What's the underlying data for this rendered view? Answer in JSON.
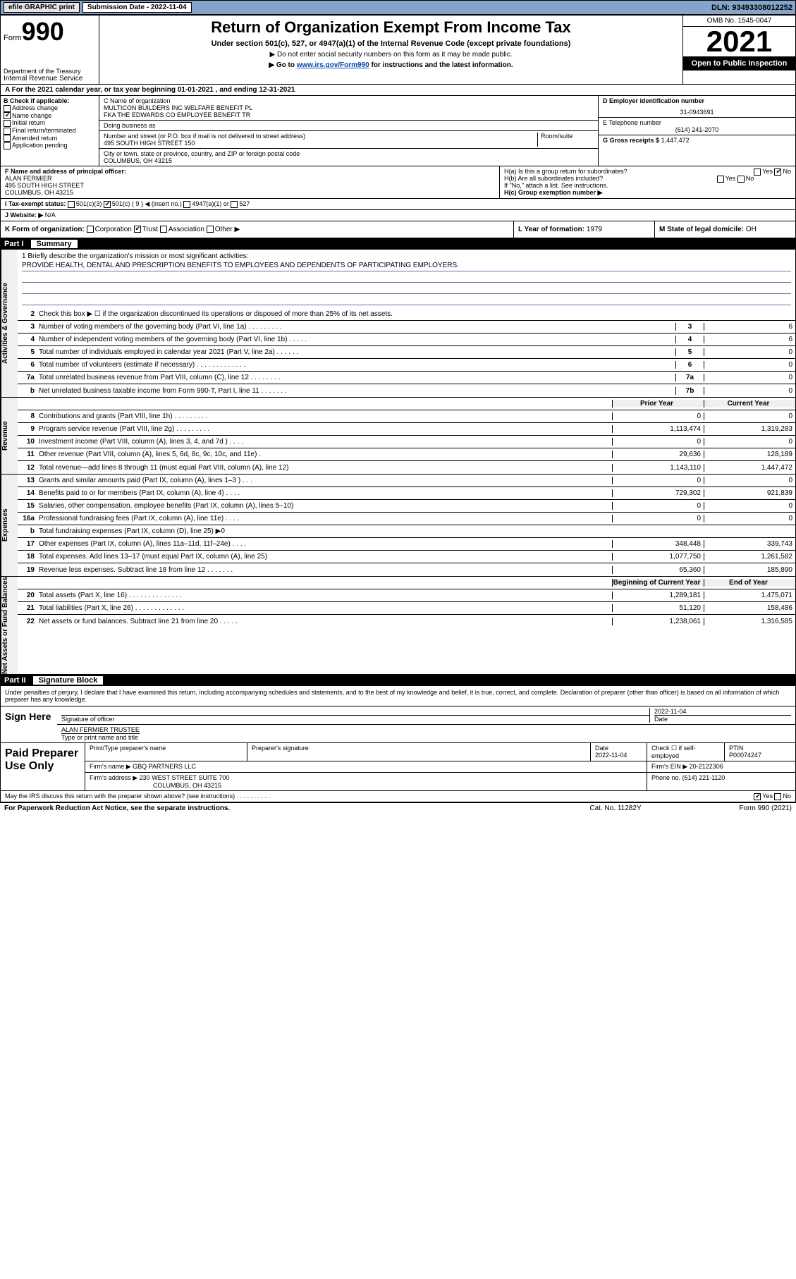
{
  "topbar": {
    "efile": "efile GRAPHIC print",
    "sub_label": "Submission Date - 2022-11-04",
    "dln": "DLN: 93493308012252"
  },
  "header": {
    "form_prefix": "Form",
    "form_no": "990",
    "dept": "Department of the Treasury",
    "irs": "Internal Revenue Service",
    "title": "Return of Organization Exempt From Income Tax",
    "sub": "Under section 501(c), 527, or 4947(a)(1) of the Internal Revenue Code (except private foundations)",
    "note1": "▶ Do not enter social security numbers on this form as it may be made public.",
    "note2_pre": "▶ Go to ",
    "note2_link": "www.irs.gov/Form990",
    "note2_post": " for instructions and the latest information.",
    "omb": "OMB No. 1545-0047",
    "year": "2021",
    "inspect": "Open to Public Inspection"
  },
  "row_a": "A For the 2021 calendar year, or tax year beginning 01-01-2021  , and ending 12-31-2021",
  "col_b": {
    "label": "B Check if applicable:",
    "addr": "Address change",
    "name": "Name change",
    "init": "Initial return",
    "final": "Final return/terminated",
    "amend": "Amended return",
    "app": "Application pending"
  },
  "col_c": {
    "name_lbl": "C Name of organization",
    "name1": "MULTICON BUILDERS INC WELFARE BENEFIT PL",
    "name2": "FKA THE EDWARDS CO EMPLOYEE BENEFIT TR",
    "dba_lbl": "Doing business as",
    "street_lbl": "Number and street (or P.O. box if mail is not delivered to street address)",
    "room_lbl": "Room/suite",
    "street": "495 SOUTH HIGH STREET 150",
    "city_lbl": "City or town, state or province, country, and ZIP or foreign postal code",
    "city": "COLUMBUS, OH  43215"
  },
  "col_d": {
    "ein_lbl": "D Employer identification number",
    "ein": "31-0943691",
    "tel_lbl": "E Telephone number",
    "tel": "(614) 241-2070",
    "gross_lbl": "G Gross receipts $",
    "gross": "1,447,472"
  },
  "sec_f": {
    "lbl": "F Name and address of principal officer:",
    "name": "ALAN FERMIER",
    "addr1": "495 SOUTH HIGH STREET",
    "addr2": "COLUMBUS, OH  43215"
  },
  "sec_h": {
    "ha": "H(a)  Is this a group return for subordinates?",
    "hb": "H(b)  Are all subordinates included?",
    "hb_note": "If \"No,\" attach a list. See instructions.",
    "hc": "H(c)  Group exemption number ▶",
    "yes": "Yes",
    "no": "No"
  },
  "row_i": {
    "lbl": "I    Tax-exempt status:",
    "c3": "501(c)(3)",
    "c": "501(c) ( 9 ) ◀ (insert no.)",
    "a1": "4947(a)(1) or",
    "s527": "527"
  },
  "row_j": {
    "lbl": "J   Website: ▶",
    "val": "N/A"
  },
  "row_k": {
    "lbl": "K Form of organization:",
    "corp": "Corporation",
    "trust": "Trust",
    "assoc": "Association",
    "other": "Other ▶",
    "l_lbl": "L Year of formation:",
    "l_val": "1979",
    "m_lbl": "M State of legal domicile:",
    "m_val": "OH"
  },
  "part1": {
    "label": "Part I",
    "title": "Summary"
  },
  "mission": {
    "q": "1   Briefly describe the organization's mission or most significant activities:",
    "text": "PROVIDE HEALTH, DENTAL AND PRESCRIPTION BENEFITS TO EMPLOYEES AND DEPENDENTS OF PARTICIPATING EMPLOYERS."
  },
  "lines_gov": [
    {
      "n": "2",
      "t": "Check this box ▶ ☐ if the organization discontinued its operations or disposed of more than 25% of its net assets.",
      "box": "",
      "v1": "",
      "v2": ""
    },
    {
      "n": "3",
      "t": "Number of voting members of the governing body (Part VI, line 1a)   .   .   .   .   .   .   .   .   .",
      "box": "3",
      "v2": "6"
    },
    {
      "n": "4",
      "t": "Number of independent voting members of the governing body (Part VI, line 1b)   .   .   .   .   .",
      "box": "4",
      "v2": "6"
    },
    {
      "n": "5",
      "t": "Total number of individuals employed in calendar year 2021 (Part V, line 2a)   .   .   .   .   .   .",
      "box": "5",
      "v2": "0"
    },
    {
      "n": "6",
      "t": "Total number of volunteers (estimate if necessary)   .   .   .   .   .   .   .   .   .   .   .   .   .",
      "box": "6",
      "v2": "0"
    },
    {
      "n": "7a",
      "t": "Total unrelated business revenue from Part VIII, column (C), line 12   .   .   .   .   .   .   .   .",
      "box": "7a",
      "v2": "0"
    },
    {
      "n": "b",
      "t": "Net unrelated business taxable income from Form 990-T, Part I, line 11   .   .   .   .   .   .   .",
      "box": "7b",
      "v2": "0"
    }
  ],
  "col_hdr": {
    "py": "Prior Year",
    "cy": "Current Year"
  },
  "lines_rev": [
    {
      "n": "8",
      "t": "Contributions and grants (Part VIII, line 1h)   .   .   .   .   .   .   .   .   .",
      "v1": "0",
      "v2": "0"
    },
    {
      "n": "9",
      "t": "Program service revenue (Part VIII, line 2g)   .   .   .   .   .   .   .   .   .",
      "v1": "1,113,474",
      "v2": "1,319,283"
    },
    {
      "n": "10",
      "t": "Investment income (Part VIII, column (A), lines 3, 4, and 7d )   .   .   .   .",
      "v1": "0",
      "v2": "0"
    },
    {
      "n": "11",
      "t": "Other revenue (Part VIII, column (A), lines 5, 6d, 8c, 9c, 10c, and 11e)   .",
      "v1": "29,636",
      "v2": "128,189"
    },
    {
      "n": "12",
      "t": "Total revenue—add lines 8 through 11 (must equal Part VIII, column (A), line 12)",
      "v1": "1,143,110",
      "v2": "1,447,472"
    }
  ],
  "lines_exp": [
    {
      "n": "13",
      "t": "Grants and similar amounts paid (Part IX, column (A), lines 1–3 )   .   .   .",
      "v1": "0",
      "v2": "0"
    },
    {
      "n": "14",
      "t": "Benefits paid to or for members (Part IX, column (A), line 4)   .   .   .   .",
      "v1": "729,302",
      "v2": "921,839"
    },
    {
      "n": "15",
      "t": "Salaries, other compensation, employee benefits (Part IX, column (A), lines 5–10)",
      "v1": "0",
      "v2": "0"
    },
    {
      "n": "16a",
      "t": "Professional fundraising fees (Part IX, column (A), line 11e)   .   .   .   .",
      "v1": "0",
      "v2": "0"
    },
    {
      "n": "b",
      "t": "Total fundraising expenses (Part IX, column (D), line 25) ▶0",
      "v1": "",
      "v2": "",
      "gray": true
    },
    {
      "n": "17",
      "t": "Other expenses (Part IX, column (A), lines 11a–11d, 11f–24e)   .   .   .   .",
      "v1": "348,448",
      "v2": "339,743"
    },
    {
      "n": "18",
      "t": "Total expenses. Add lines 13–17 (must equal Part IX, column (A), line 25)",
      "v1": "1,077,750",
      "v2": "1,261,582"
    },
    {
      "n": "19",
      "t": "Revenue less expenses. Subtract line 18 from line 12   .   .   .   .   .   .   .",
      "v1": "65,360",
      "v2": "185,890"
    }
  ],
  "col_hdr2": {
    "py": "Beginning of Current Year",
    "cy": "End of Year"
  },
  "lines_na": [
    {
      "n": "20",
      "t": "Total assets (Part X, line 16)   .   .   .   .   .   .   .   .   .   .   .   .   .   .",
      "v1": "1,289,181",
      "v2": "1,475,071"
    },
    {
      "n": "21",
      "t": "Total liabilities (Part X, line 26)   .   .   .   .   .   .   .   .   .   .   .   .   .",
      "v1": "51,120",
      "v2": "158,486"
    },
    {
      "n": "22",
      "t": "Net assets or fund balances. Subtract line 21 from line 20   .   .   .   .   .",
      "v1": "1,238,061",
      "v2": "1,316,585"
    }
  ],
  "part2": {
    "label": "Part II",
    "title": "Signature Block"
  },
  "sig": {
    "decl": "Under penalties of perjury, I declare that I have examined this return, including accompanying schedules and statements, and to the best of my knowledge and belief, it is true, correct, and complete. Declaration of preparer (other than officer) is based on all information of which preparer has any knowledge.",
    "sign_here": "Sign Here",
    "sig_officer": "Signature of officer",
    "date": "2022-11-04",
    "date_lbl": "Date",
    "name": "ALAN FERMIER  TRUSTEE",
    "name_lbl": "Type or print name and title"
  },
  "paid": {
    "lbl": "Paid Preparer Use Only",
    "prep_name_lbl": "Print/Type preparer's name",
    "prep_sig_lbl": "Preparer's signature",
    "date_lbl": "Date",
    "date": "2022-11-04",
    "check_lbl": "Check ☐ if self-employed",
    "ptin_lbl": "PTIN",
    "ptin": "P00074247",
    "firm_name_lbl": "Firm's name   ▶",
    "firm_name": "GBQ PARTNERS LLC",
    "firm_ein_lbl": "Firm's EIN ▶",
    "firm_ein": "20-2122306",
    "firm_addr_lbl": "Firm's address ▶",
    "firm_addr1": "230 WEST STREET SUITE 700",
    "firm_addr2": "COLUMBUS, OH  43215",
    "phone_lbl": "Phone no.",
    "phone": "(614) 221-1120"
  },
  "discuss": "May the IRS discuss this return with the preparer shown above? (see instructions)   .   .   .   .   .   .   .   .   .   .",
  "footer": {
    "l": "For Paperwork Reduction Act Notice, see the separate instructions.",
    "m": "Cat. No. 11282Y",
    "r": "Form 990 (2021)"
  },
  "vtabs": {
    "gov": "Activities & Governance",
    "rev": "Revenue",
    "exp": "Expenses",
    "na": "Net Assets or Fund Balances"
  }
}
